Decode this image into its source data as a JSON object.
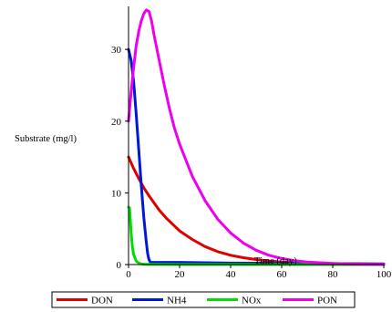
{
  "chart_data": {
    "type": "line",
    "xlabel": "Time (day)",
    "ylabel": "Substrate (mg/l)",
    "xlim": [
      0,
      100
    ],
    "ylim": [
      0,
      36
    ],
    "x_ticks": [
      "0",
      "20",
      "40",
      "60",
      "80",
      "100"
    ],
    "y_ticks": [
      "0",
      "10",
      "20",
      "30"
    ],
    "grid": false,
    "legend_position": "bottom",
    "series": [
      {
        "name": "DON",
        "color": "#e00000",
        "x": [
          0,
          2,
          4,
          6,
          8,
          10,
          12,
          15,
          20,
          25,
          30,
          35,
          40,
          45,
          50,
          55,
          60,
          65,
          70,
          80,
          90,
          100
        ],
        "y": [
          15,
          13.4,
          12.0,
          10.7,
          9.6,
          8.6,
          7.6,
          6.4,
          4.7,
          3.5,
          2.5,
          1.8,
          1.3,
          0.95,
          0.7,
          0.5,
          0.35,
          0.25,
          0.18,
          0.09,
          0.05,
          0.02
        ]
      },
      {
        "name": "NH4",
        "color": "#0018d8",
        "x": [
          0,
          1,
          2,
          3,
          4,
          5,
          6,
          7,
          7.5,
          8,
          8.5,
          9,
          10,
          15,
          20,
          30,
          40,
          100
        ],
        "y": [
          30,
          28.5,
          25.5,
          21.0,
          16.0,
          11.0,
          6.5,
          3.0,
          1.5,
          0.7,
          0.35,
          0.3,
          0.3,
          0.3,
          0.3,
          0.25,
          0.2,
          0.1
        ]
      },
      {
        "name": "NOx",
        "color": "#00dd00",
        "x": [
          0,
          0.4,
          1,
          1.5,
          2,
          3,
          4,
          5,
          6,
          8,
          10,
          20,
          30,
          40,
          100
        ],
        "y": [
          8,
          7.9,
          4.5,
          2.5,
          1.4,
          0.5,
          0.2,
          0.1,
          0.05,
          0.03,
          0.02,
          0.01,
          0.01,
          0.01,
          0.0
        ]
      },
      {
        "name": "PON",
        "color": "#ee00ee",
        "x": [
          0,
          1,
          2,
          3,
          4,
          5,
          6,
          7,
          8,
          9,
          10,
          12,
          14,
          16,
          18,
          20,
          25,
          30,
          35,
          40,
          45,
          50,
          55,
          60,
          65,
          70,
          80,
          90,
          100
        ],
        "y": [
          20,
          24,
          27.5,
          30.5,
          32.5,
          34,
          35,
          35.5,
          35.3,
          34,
          32,
          28.5,
          25,
          21.8,
          19,
          16.8,
          12.3,
          8.9,
          6.3,
          4.4,
          3.0,
          2.0,
          1.3,
          0.85,
          0.55,
          0.35,
          0.15,
          0.06,
          0.02
        ]
      }
    ]
  }
}
